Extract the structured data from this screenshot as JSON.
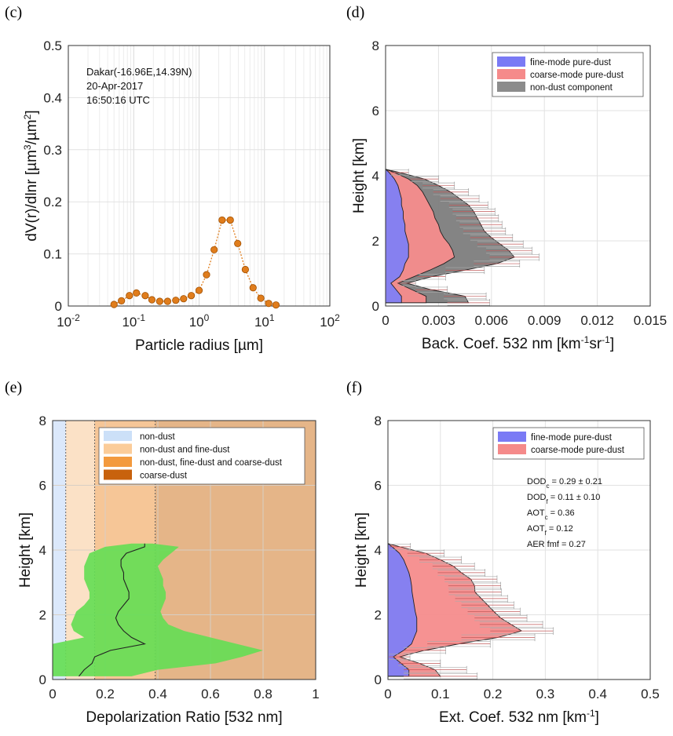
{
  "panels": {
    "c": "(c)",
    "d": "(d)",
    "e": "(e)",
    "f": "(f)"
  },
  "chart_data": [
    {
      "id": "c",
      "type": "line",
      "xlabel": "Particle radius [µm]",
      "ylabel_html": "dV(r)/dlnr [µm³/µm²]",
      "ylabel_parts": [
        "dV(r)/dlnr [µm",
        "3",
        "/µm",
        "2",
        "]"
      ],
      "xscale": "log",
      "xlim": [
        0.01,
        100
      ],
      "ylim": [
        0,
        0.5
      ],
      "xticks": [
        "10",
        "10",
        "10",
        "10",
        "10"
      ],
      "xtick_exp": [
        "-2",
        "-1",
        "0",
        "1",
        "2"
      ],
      "yticks": [
        "0",
        "0.1",
        "0.2",
        "0.3",
        "0.4",
        "0.5"
      ],
      "annotation": [
        "Dakar(-16.96E,14.39N)",
        "20-Apr-2017",
        "16:50:16 UTC"
      ],
      "marker_color": "#e07d1c",
      "x": [
        0.05,
        0.065,
        0.086,
        0.11,
        0.15,
        0.19,
        0.25,
        0.33,
        0.44,
        0.58,
        0.76,
        1.0,
        1.3,
        1.7,
        2.25,
        3.0,
        3.9,
        5.1,
        6.7,
        8.8,
        11.6,
        15.0
      ],
      "y": [
        0.003,
        0.01,
        0.02,
        0.025,
        0.02,
        0.012,
        0.009,
        0.009,
        0.011,
        0.014,
        0.02,
        0.03,
        0.06,
        0.108,
        0.165,
        0.165,
        0.12,
        0.07,
        0.035,
        0.015,
        0.005,
        0.002
      ]
    },
    {
      "id": "d",
      "type": "area",
      "orientation": "horizontal",
      "xlabel_parts": [
        "Back. Coef. 532 nm [km",
        "-1",
        "sr",
        "-1",
        "]"
      ],
      "ylabel": "Height [km]",
      "xlim": [
        0,
        0.015
      ],
      "ylim": [
        0,
        8
      ],
      "xticks": [
        "0",
        "0.003",
        "0.006",
        "0.009",
        "0.012",
        "0.015"
      ],
      "yticks": [
        "0",
        "2",
        "4",
        "6",
        "8"
      ],
      "legend": [
        "fine-mode pure-dust",
        "coarse-mode pure-dust",
        "non-dust component"
      ],
      "colors": [
        "#7a7af5",
        "#f58a8a",
        "#8c8c8c"
      ],
      "height": [
        0.1,
        0.3,
        0.5,
        0.7,
        0.9,
        1.1,
        1.3,
        1.5,
        1.7,
        1.9,
        2.1,
        2.3,
        2.5,
        2.7,
        2.9,
        3.1,
        3.3,
        3.5,
        3.7,
        3.9,
        4.1,
        4.2
      ],
      "fine": [
        0.0009,
        0.0009,
        0.0006,
        0.0003,
        0.0008,
        0.001,
        0.0011,
        0.0013,
        0.0013,
        0.0013,
        0.0012,
        0.0011,
        0.0011,
        0.001,
        0.001,
        0.0009,
        0.0009,
        0.0008,
        0.0007,
        0.0005,
        0.0002,
        0.0
      ],
      "coarse": [
        0.0014,
        0.0014,
        0.0009,
        0.0004,
        0.0008,
        0.0015,
        0.0022,
        0.0026,
        0.0025,
        0.0023,
        0.0021,
        0.002,
        0.0019,
        0.0018,
        0.0017,
        0.0016,
        0.0014,
        0.0013,
        0.0011,
        0.0008,
        0.0003,
        0.0
      ],
      "nondust": [
        0.0024,
        0.0022,
        0.0011,
        0.0005,
        0.001,
        0.002,
        0.003,
        0.0034,
        0.0032,
        0.0029,
        0.0027,
        0.0025,
        0.0024,
        0.0024,
        0.0023,
        0.0022,
        0.0019,
        0.0016,
        0.0012,
        0.0009,
        0.0003,
        0.0
      ],
      "error": [
        0.0012,
        0.0012,
        0.0009,
        0.0005,
        0.0008,
        0.0011,
        0.0013,
        0.0014,
        0.0013,
        0.0013,
        0.0012,
        0.0012,
        0.0012,
        0.0012,
        0.0012,
        0.0011,
        0.0011,
        0.001,
        0.0009,
        0.0008,
        0.0005,
        0.0
      ]
    },
    {
      "id": "e",
      "type": "area",
      "orientation": "horizontal",
      "xlabel": "Depolarization Ratio [532 nm]",
      "ylabel": "Height [km]",
      "xlim": [
        0,
        1
      ],
      "ylim": [
        0,
        8
      ],
      "xticks": [
        "0",
        "0.2",
        "0.4",
        "0.6",
        "0.8",
        "1"
      ],
      "yticks": [
        "0",
        "2",
        "4",
        "6",
        "8"
      ],
      "legend": [
        "non-dust",
        "non-dust and fine-dust",
        "non-dust, fine-dust and coarse-dust",
        "coarse-dust"
      ],
      "region_bounds": [
        0,
        0.05,
        0.16,
        0.39,
        1
      ],
      "region_colors": [
        "#dbe8fb",
        "#fbe1c6",
        "#f6c697",
        "#e5b588"
      ],
      "legend_colors": [
        "#cce0f8",
        "#fbcc99",
        "#f39a3e",
        "#c8620d"
      ],
      "band_color": "#66dd55",
      "height": [
        0.1,
        0.3,
        0.5,
        0.7,
        0.9,
        1.1,
        1.3,
        1.5,
        1.7,
        1.9,
        2.1,
        2.3,
        2.5,
        2.7,
        2.9,
        3.1,
        3.3,
        3.5,
        3.7,
        3.9,
        4.1,
        4.2
      ],
      "mean": [
        0.1,
        0.12,
        0.15,
        0.16,
        0.22,
        0.35,
        0.3,
        0.27,
        0.25,
        0.24,
        0.25,
        0.27,
        0.29,
        0.29,
        0.28,
        0.27,
        0.27,
        0.26,
        0.26,
        0.28,
        0.35,
        0.35
      ],
      "lower": [
        0.0,
        0.0,
        0.0,
        0.0,
        0.0,
        0.0,
        0.12,
        0.08,
        0.07,
        0.08,
        0.09,
        0.12,
        0.14,
        0.14,
        0.13,
        0.12,
        0.12,
        0.12,
        0.13,
        0.14,
        0.2,
        0.3
      ],
      "upper": [
        0.3,
        0.4,
        0.62,
        0.72,
        0.8,
        0.7,
        0.6,
        0.5,
        0.44,
        0.42,
        0.41,
        0.42,
        0.43,
        0.43,
        0.42,
        0.42,
        0.41,
        0.4,
        0.42,
        0.45,
        0.48,
        0.38
      ]
    },
    {
      "id": "f",
      "type": "area",
      "orientation": "horizontal",
      "xlabel_parts": [
        "Ext. Coef. 532 nm [km",
        "-1",
        "]"
      ],
      "ylabel": "Height [km]",
      "xlim": [
        0,
        0.5
      ],
      "ylim": [
        0,
        8
      ],
      "xticks": [
        "0",
        "0.1",
        "0.2",
        "0.3",
        "0.4",
        "0.5"
      ],
      "yticks": [
        "0",
        "2",
        "4",
        "6",
        "8"
      ],
      "legend": [
        "fine-mode pure-dust",
        "coarse-mode pure-dust"
      ],
      "colors": [
        "#7a7af5",
        "#f58a8a"
      ],
      "stats": [
        {
          "main": "DOD",
          "sub": "c",
          "rest": " = 0.29 ± 0.21"
        },
        {
          "main": "DOD",
          "sub": "f",
          "rest": " = 0.11 ± 0.10"
        },
        {
          "main": "AOT",
          "sub": "c",
          "rest": " = 0.36"
        },
        {
          "main": "AOT",
          "sub": "f",
          "rest": " = 0.12"
        },
        {
          "main": "AER fmf = 0.27",
          "sub": "",
          "rest": ""
        }
      ],
      "height": [
        0.1,
        0.3,
        0.5,
        0.7,
        0.9,
        1.1,
        1.3,
        1.5,
        1.7,
        1.9,
        2.1,
        2.3,
        2.5,
        2.7,
        2.9,
        3.1,
        3.3,
        3.5,
        3.7,
        3.9,
        4.1,
        4.2
      ],
      "fine": [
        0.04,
        0.04,
        0.025,
        0.01,
        0.03,
        0.045,
        0.05,
        0.055,
        0.055,
        0.055,
        0.052,
        0.05,
        0.048,
        0.046,
        0.045,
        0.043,
        0.04,
        0.035,
        0.03,
        0.022,
        0.008,
        0.0
      ],
      "coarse": [
        0.06,
        0.05,
        0.035,
        0.012,
        0.04,
        0.09,
        0.16,
        0.2,
        0.18,
        0.16,
        0.15,
        0.14,
        0.13,
        0.12,
        0.12,
        0.115,
        0.1,
        0.09,
        0.07,
        0.05,
        0.015,
        0.0
      ],
      "error": [
        0.07,
        0.06,
        0.04,
        0.02,
        0.04,
        0.06,
        0.07,
        0.06,
        0.06,
        0.05,
        0.05,
        0.05,
        0.05,
        0.05,
        0.05,
        0.05,
        0.045,
        0.04,
        0.04,
        0.035,
        0.02,
        0.0
      ]
    }
  ]
}
